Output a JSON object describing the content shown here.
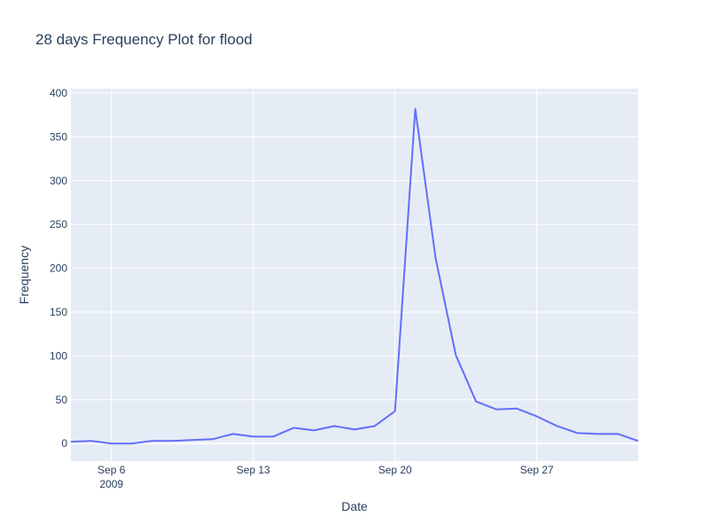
{
  "chart_data": {
    "type": "line",
    "title": "28 days Frequency Plot for flood",
    "xlabel": "Date",
    "ylabel": "Frequency",
    "x_type": "date",
    "xlim": [
      "2009-09-04",
      "2009-10-02"
    ],
    "ylim": [
      -20,
      405
    ],
    "grid": true,
    "x_ticks": [
      {
        "date": "2009-09-06",
        "label": "Sep 6",
        "sublabel": "2009"
      },
      {
        "date": "2009-09-13",
        "label": "Sep 13",
        "sublabel": ""
      },
      {
        "date": "2009-09-20",
        "label": "Sep 20",
        "sublabel": ""
      },
      {
        "date": "2009-09-27",
        "label": "Sep 27",
        "sublabel": ""
      }
    ],
    "y_ticks": [
      0,
      50,
      100,
      150,
      200,
      250,
      300,
      350,
      400
    ],
    "series": [
      {
        "color": "#636efa",
        "x": [
          "2009-09-04",
          "2009-09-05",
          "2009-09-06",
          "2009-09-07",
          "2009-09-08",
          "2009-09-09",
          "2009-09-10",
          "2009-09-11",
          "2009-09-12",
          "2009-09-13",
          "2009-09-14",
          "2009-09-15",
          "2009-09-16",
          "2009-09-17",
          "2009-09-18",
          "2009-09-19",
          "2009-09-20",
          "2009-09-21",
          "2009-09-22",
          "2009-09-23",
          "2009-09-24",
          "2009-09-25",
          "2009-09-26",
          "2009-09-27",
          "2009-09-28",
          "2009-09-29",
          "2009-09-30",
          "2009-10-01",
          "2009-10-02"
        ],
        "y": [
          2,
          3,
          0,
          0,
          3,
          3,
          4,
          5,
          11,
          8,
          8,
          18,
          15,
          20,
          16,
          20,
          37,
          382,
          212,
          101,
          48,
          39,
          40,
          31,
          20,
          12,
          11,
          11,
          3
        ]
      }
    ]
  },
  "colors": {
    "plot_background": "#e5ecf6",
    "grid": "#ffffff",
    "text": "#2a3f5f",
    "line": "#636efa"
  }
}
